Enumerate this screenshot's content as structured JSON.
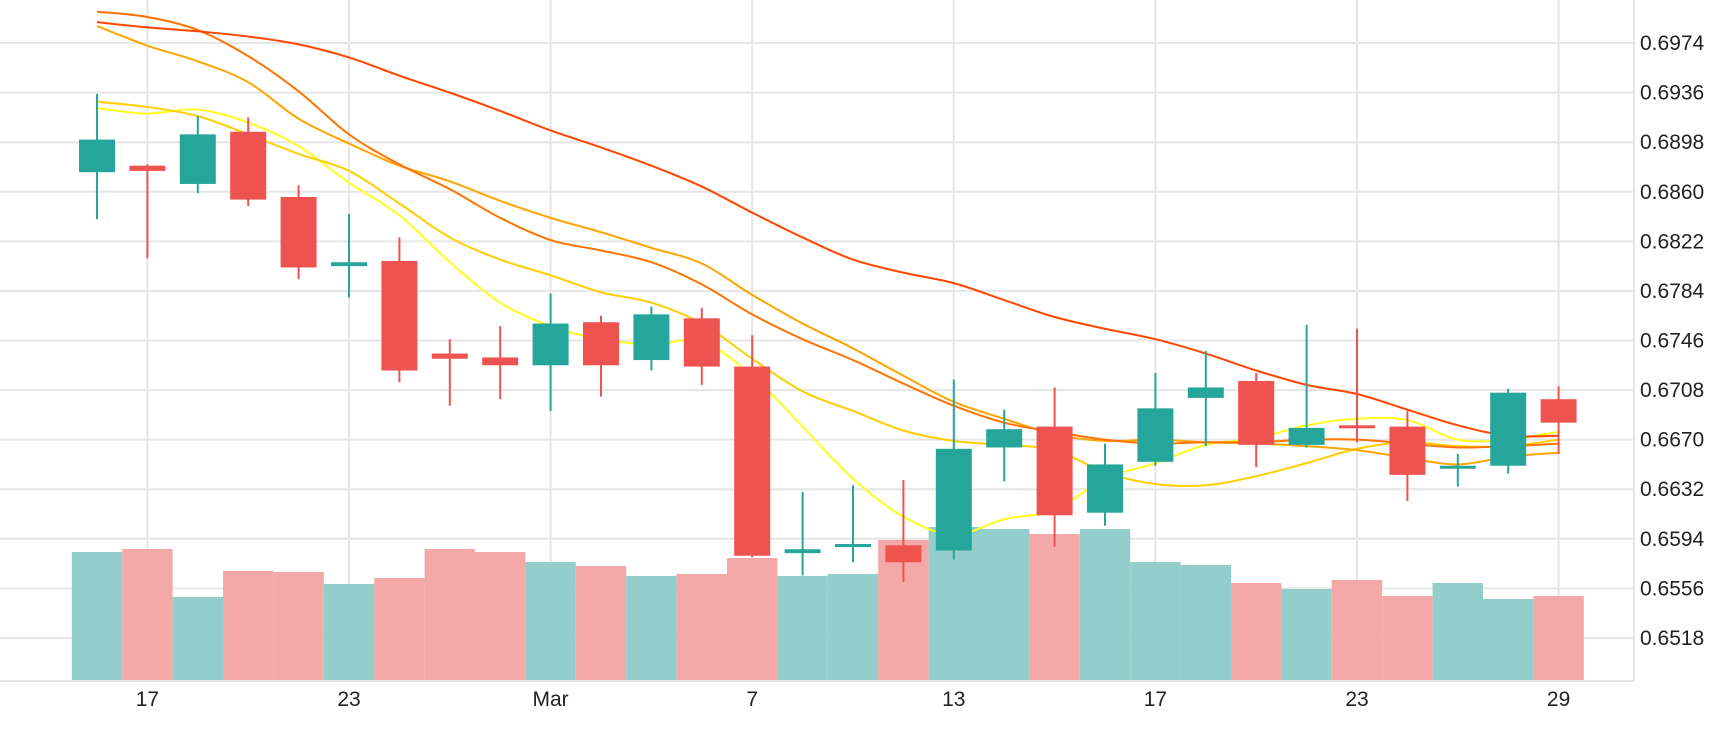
{
  "chart_data": {
    "type": "candlestick",
    "title": "",
    "y_axis": {
      "position": "right",
      "ticks": [
        "0.6974",
        "0.6936",
        "0.6898",
        "0.6860",
        "0.6822",
        "0.6784",
        "0.6746",
        "0.6708",
        "0.6670",
        "0.6632",
        "0.6594",
        "0.6556",
        "0.6518"
      ],
      "ylim": [
        0.6485,
        0.7007
      ]
    },
    "x_axis": {
      "ticks": [
        {
          "label": "17",
          "index": 1
        },
        {
          "label": "23",
          "index": 5
        },
        {
          "label": "Mar",
          "index": 9
        },
        {
          "label": "7",
          "index": 13
        },
        {
          "label": "13",
          "index": 17
        },
        {
          "label": "17",
          "index": 21
        },
        {
          "label": "23",
          "index": 25
        },
        {
          "label": "29",
          "index": 29
        }
      ]
    },
    "grid": true,
    "colors": {
      "up": "#26a69a",
      "down": "#ef5350",
      "volume_up": "#93cdcc",
      "volume_down": "#f4a9a8",
      "grid": "#e6e6e6"
    },
    "candles": [
      {
        "o": 0.6875,
        "h": 0.6935,
        "l": 0.6839,
        "c": 0.69
      },
      {
        "o": 0.688,
        "h": 0.6881,
        "l": 0.6809,
        "c": 0.6876
      },
      {
        "o": 0.6866,
        "h": 0.6918,
        "l": 0.6859,
        "c": 0.6904
      },
      {
        "o": 0.6906,
        "h": 0.6917,
        "l": 0.6849,
        "c": 0.6854
      },
      {
        "o": 0.6856,
        "h": 0.6865,
        "l": 0.6793,
        "c": 0.6802
      },
      {
        "o": 0.6803,
        "h": 0.6843,
        "l": 0.6779,
        "c": 0.6806
      },
      {
        "o": 0.6807,
        "h": 0.6825,
        "l": 0.6714,
        "c": 0.6723
      },
      {
        "o": 0.6736,
        "h": 0.6747,
        "l": 0.6696,
        "c": 0.6732
      },
      {
        "o": 0.6733,
        "h": 0.6757,
        "l": 0.6701,
        "c": 0.6727
      },
      {
        "o": 0.6727,
        "h": 0.6782,
        "l": 0.6692,
        "c": 0.6759
      },
      {
        "o": 0.676,
        "h": 0.6765,
        "l": 0.6703,
        "c": 0.6727
      },
      {
        "o": 0.6731,
        "h": 0.6772,
        "l": 0.6723,
        "c": 0.6766
      },
      {
        "o": 0.6763,
        "h": 0.6771,
        "l": 0.6712,
        "c": 0.6726
      },
      {
        "o": 0.6726,
        "h": 0.675,
        "l": 0.658,
        "c": 0.6581
      },
      {
        "o": 0.6583,
        "h": 0.663,
        "l": 0.6566,
        "c": 0.6586
      },
      {
        "o": 0.6588,
        "h": 0.6635,
        "l": 0.6576,
        "c": 0.659
      },
      {
        "o": 0.6589,
        "h": 0.6639,
        "l": 0.6561,
        "c": 0.6576
      },
      {
        "o": 0.6585,
        "h": 0.6716,
        "l": 0.6578,
        "c": 0.6663
      },
      {
        "o": 0.6664,
        "h": 0.6693,
        "l": 0.6638,
        "c": 0.6678
      },
      {
        "o": 0.668,
        "h": 0.671,
        "l": 0.6588,
        "c": 0.6612
      },
      {
        "o": 0.6614,
        "h": 0.6667,
        "l": 0.6604,
        "c": 0.6651
      },
      {
        "o": 0.6653,
        "h": 0.6721,
        "l": 0.665,
        "c": 0.6694
      },
      {
        "o": 0.6702,
        "h": 0.6738,
        "l": 0.6665,
        "c": 0.671
      },
      {
        "o": 0.6715,
        "h": 0.6721,
        "l": 0.6649,
        "c": 0.6666
      },
      {
        "o": 0.6666,
        "h": 0.6758,
        "l": 0.6664,
        "c": 0.6679
      },
      {
        "o": 0.6681,
        "h": 0.6755,
        "l": 0.6668,
        "c": 0.6679
      },
      {
        "o": 0.668,
        "h": 0.6692,
        "l": 0.6623,
        "c": 0.6643
      },
      {
        "o": 0.6649,
        "h": 0.6659,
        "l": 0.6634,
        "c": 0.665
      },
      {
        "o": 0.665,
        "h": 0.6709,
        "l": 0.6644,
        "c": 0.6706
      },
      {
        "o": 0.6701,
        "h": 0.6711,
        "l": 0.6659,
        "c": 0.6683
      }
    ],
    "volume": {
      "max": 1.0,
      "values": [
        0.645,
        0.66,
        0.42,
        0.55,
        0.545,
        0.485,
        0.515,
        0.66,
        0.645,
        0.595,
        0.575,
        0.525,
        0.535,
        0.615,
        0.525,
        0.535,
        0.705,
        0.77,
        0.76,
        0.735,
        0.76,
        0.595,
        0.58,
        0.49,
        0.46,
        0.505,
        0.425,
        0.49,
        0.41,
        0.425
      ]
    },
    "moving_averages": [
      {
        "color": "#ffff1e",
        "values": [
          0.6924,
          0.692,
          0.6923,
          0.6913,
          0.6895,
          0.6867,
          0.6842,
          0.6806,
          0.6775,
          0.6757,
          0.6747,
          0.6743,
          0.6745,
          0.6719,
          0.668,
          0.664,
          0.6611,
          0.6597,
          0.6609,
          0.6616,
          0.664,
          0.6652,
          0.6666,
          0.6671,
          0.6681,
          0.6686,
          0.6685,
          0.667,
          0.667,
          0.6676
        ]
      },
      {
        "color": "#ffcd00",
        "values": [
          0.6929,
          0.6925,
          0.6918,
          0.6904,
          0.6889,
          0.6876,
          0.6851,
          0.6825,
          0.6808,
          0.6796,
          0.6783,
          0.6775,
          0.6759,
          0.6732,
          0.6707,
          0.6692,
          0.6677,
          0.6669,
          0.6666,
          0.6662,
          0.6645,
          0.6636,
          0.6635,
          0.6642,
          0.6652,
          0.6663,
          0.6668,
          0.6665,
          0.6665,
          0.667
        ]
      },
      {
        "color": "#ffa500",
        "values": [
          0.6987,
          0.6972,
          0.696,
          0.6944,
          0.6916,
          0.6897,
          0.688,
          0.6868,
          0.6853,
          0.684,
          0.6829,
          0.6817,
          0.6805,
          0.6781,
          0.6759,
          0.674,
          0.6719,
          0.6699,
          0.6686,
          0.6674,
          0.6669,
          0.667,
          0.6668,
          0.6667,
          0.6665,
          0.6662,
          0.6656,
          0.6651,
          0.6657,
          0.666
        ]
      },
      {
        "color": "#ff7300",
        "values": [
          0.6998,
          0.6994,
          0.6984,
          0.6964,
          0.6937,
          0.6904,
          0.6881,
          0.6862,
          0.684,
          0.6823,
          0.6815,
          0.6806,
          0.6789,
          0.6766,
          0.6747,
          0.6731,
          0.6713,
          0.6696,
          0.6683,
          0.6676,
          0.667,
          0.6667,
          0.6668,
          0.6668,
          0.667,
          0.667,
          0.6667,
          0.6664,
          0.6665,
          0.6667
        ]
      },
      {
        "color": "#ff4600",
        "values": [
          0.699,
          0.6986,
          0.6983,
          0.6979,
          0.6973,
          0.6963,
          0.6949,
          0.6936,
          0.6922,
          0.6907,
          0.6894,
          0.688,
          0.6864,
          0.6844,
          0.6825,
          0.6808,
          0.6798,
          0.679,
          0.6777,
          0.6764,
          0.6755,
          0.6747,
          0.6736,
          0.6723,
          0.6712,
          0.6705,
          0.6693,
          0.6681,
          0.6673,
          0.6673
        ]
      }
    ]
  }
}
